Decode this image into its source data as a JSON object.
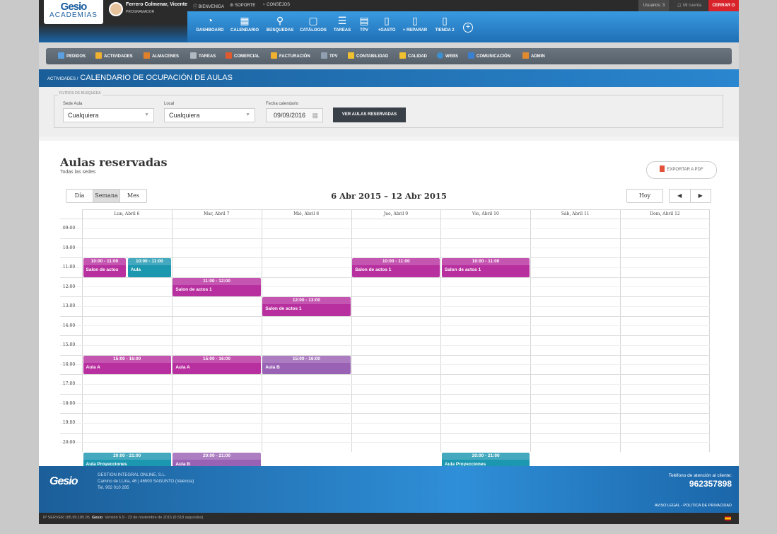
{
  "brand": {
    "logo": "Gesio",
    "logo_sub": "ACADEMIAS"
  },
  "user": {
    "name": "Ferrero Colmenar, Vicente",
    "role": "PROGRAMADOR"
  },
  "toplinks": [
    "BIENVENIDA",
    "SOPORTE",
    "CONSEJOS"
  ],
  "topright": {
    "usuarios": "Usuarios: 3",
    "micuenta": "Mi cuenta",
    "cerrar": "CERRAR"
  },
  "nav": [
    {
      "label": "DASHBOARD",
      "icon": "dashboard-icon"
    },
    {
      "label": "CALENDARIO",
      "icon": "calendar-icon"
    },
    {
      "label": "BÚSQUEDAS",
      "icon": "search-icon"
    },
    {
      "label": "CATÁLOGOS",
      "icon": "catalog-icon"
    },
    {
      "label": "TAREAS",
      "icon": "list-icon"
    },
    {
      "label": "TPV",
      "icon": "register-icon"
    },
    {
      "label": "+GASTO",
      "icon": "document-icon"
    },
    {
      "label": "+ REPARAR",
      "icon": "document-icon"
    },
    {
      "label": "TIENDA 2",
      "icon": "document-icon"
    }
  ],
  "modules": [
    {
      "label": "PEDIDOS",
      "color": "#5aa0e0"
    },
    {
      "label": "ACTIVIDADES",
      "color": "#f0b030"
    },
    {
      "label": "ALMACENES",
      "color": "#e0802a"
    },
    {
      "label": "TAREAS",
      "color": "#b0b8c0"
    },
    {
      "label": "COMERCIAL",
      "color": "#e05a30"
    },
    {
      "label": "FACTURACIÓN",
      "color": "#f0b030"
    },
    {
      "label": "TPV",
      "color": "#90a0b0"
    },
    {
      "label": "CONTABILIDAD",
      "color": "#f0c030"
    },
    {
      "label": "CALIDAD",
      "color": "#f0c030"
    },
    {
      "label": "WEBS",
      "color": "#3a90d0"
    },
    {
      "label": "COMUNICACIÓN",
      "color": "#3a80d0"
    },
    {
      "label": "ADMIN",
      "color": "#e08a30"
    }
  ],
  "breadcrumb": {
    "parent": "ACTIVIDADES /",
    "current": "CALENDARIO DE OCUPACIÓN DE AULAS"
  },
  "filters": {
    "legend": "FILTROS DE BÚSQUEDA",
    "sede_label": "Sede Aula",
    "sede_value": "Cualquiera",
    "local_label": "Local",
    "local_value": "Cualquiera",
    "fecha_label": "Fecha calendario",
    "fecha_value": "09/09/2016",
    "button": "VER AULAS RESERVADAS"
  },
  "calendar": {
    "title": "Aulas reservadas",
    "subtitle": "Todas las sedes",
    "export": "EXPORTAR A PDF",
    "views": [
      "Día",
      "Semana",
      "Mes"
    ],
    "active_view": "Semana",
    "range": "6 Abr 2015 – 12 Abr 2015",
    "today": "Hoy",
    "prev": "◀",
    "next": "▶",
    "days": [
      "Lun, Abril 6",
      "Mar, Abril 7",
      "Mié, Abril 8",
      "Jue, Abril 9",
      "Vie, Abril 10",
      "Sáb, Abril 11",
      "Dom, Abril 12"
    ],
    "hours": [
      "09:00",
      "10:00",
      "11:00",
      "12:00",
      "13:00",
      "14:00",
      "15:00",
      "16:00",
      "17:00",
      "18:00",
      "19:00",
      "20:00"
    ],
    "colors": {
      "magenta": "#b8309f",
      "teal": "#1c97b0",
      "purple": "#9a62b4"
    },
    "events": [
      {
        "day": 0,
        "start": 10,
        "end": 11,
        "time": "10:00 - 11:00",
        "name": "Salon de actos",
        "color": "magenta",
        "col": 0,
        "cols": 2
      },
      {
        "day": 0,
        "start": 10,
        "end": 11,
        "time": "10:00 - 11:00",
        "name": "Aula",
        "color": "teal",
        "col": 1,
        "cols": 2
      },
      {
        "day": 3,
        "start": 10,
        "end": 11,
        "time": "10:00 - 11:00",
        "name": "Salon de actos 1",
        "color": "magenta",
        "col": 0,
        "cols": 1
      },
      {
        "day": 4,
        "start": 10,
        "end": 11,
        "time": "10:00 - 11:00",
        "name": "Salon de actos 1",
        "color": "magenta",
        "col": 0,
        "cols": 1
      },
      {
        "day": 1,
        "start": 11,
        "end": 12,
        "time": "11:00 - 12:00",
        "name": "Salon de actos 1",
        "color": "magenta",
        "col": 0,
        "cols": 1
      },
      {
        "day": 2,
        "start": 12,
        "end": 13,
        "time": "12:00 - 13:00",
        "name": "Salon de actos 1",
        "color": "magenta",
        "col": 0,
        "cols": 1
      },
      {
        "day": 0,
        "start": 15,
        "end": 16,
        "time": "15:00 - 16:00",
        "name": "Aula A",
        "color": "magenta",
        "col": 0,
        "cols": 1
      },
      {
        "day": 1,
        "start": 15,
        "end": 16,
        "time": "15:00 - 16:00",
        "name": "Aula A",
        "color": "magenta",
        "col": 0,
        "cols": 1
      },
      {
        "day": 2,
        "start": 15,
        "end": 16,
        "time": "15:00 - 16:00",
        "name": "Aula B",
        "color": "purple",
        "col": 0,
        "cols": 1
      },
      {
        "day": 0,
        "start": 20,
        "end": 21,
        "time": "20:00 - 21:00",
        "name": "Aula Proyecciones",
        "color": "teal",
        "col": 0,
        "cols": 1
      },
      {
        "day": 1,
        "start": 20,
        "end": 21,
        "time": "20:00 - 21:00",
        "name": "Aula B",
        "color": "purple",
        "col": 0,
        "cols": 1
      },
      {
        "day": 4,
        "start": 20,
        "end": 21,
        "time": "20:00 - 21:00",
        "name": "Aula Proyecciones",
        "color": "teal",
        "col": 0,
        "cols": 1
      }
    ]
  },
  "footer": {
    "logo": "Gesio",
    "company": "GESTION INTEGRAL ONLINE, S.L.",
    "address": "Camino de LLiria, 46 | 46500 SAGUNTO (Valencia)",
    "phone": "Tel. 902 010 285",
    "tel_label": "Teléfono de atención al cliente:",
    "tel_value": "962357898",
    "legal": "AVISO LEGAL - POLITICA DE PRIVACIDAD",
    "server": "IP SERVER:185.99.185.95",
    "version": "Versión 6.9 - 23 de noviembre de 2015 (0.518 segundos)"
  }
}
